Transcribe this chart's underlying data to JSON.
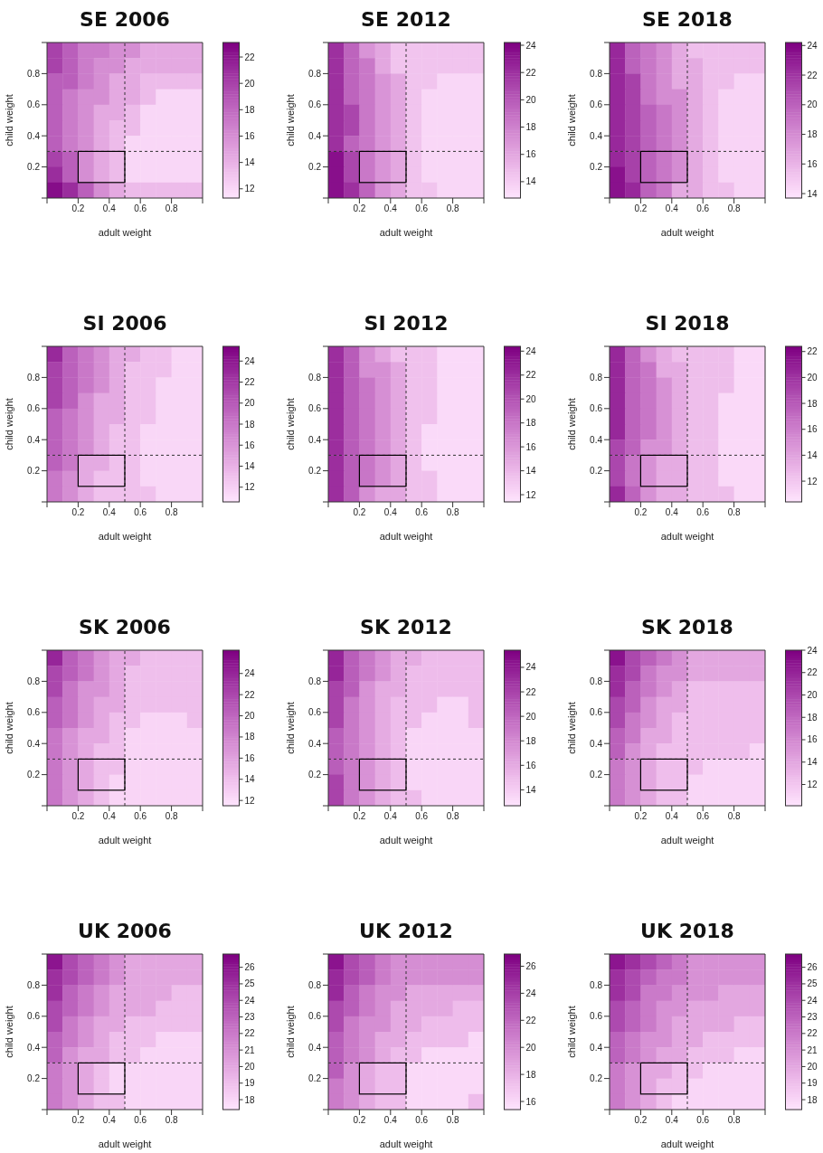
{
  "chart_data": [
    {
      "type": "heatmap",
      "title": "SE 2006",
      "xlabel": "adult weight",
      "ylabel": "child weight",
      "x": [
        0.05,
        0.15,
        0.25,
        0.35,
        0.45,
        0.55,
        0.65,
        0.75,
        0.85,
        0.95
      ],
      "xlim": [
        0,
        1
      ],
      "ylim": [
        0,
        1
      ],
      "xticks": [
        0.2,
        0.4,
        0.6,
        0.8
      ],
      "yticks": [
        0.2,
        0.4,
        0.6,
        0.8
      ],
      "clim": [
        11.3,
        23.1
      ],
      "cticks": [
        12,
        14,
        16,
        18,
        20,
        22
      ],
      "cells": [
        [
          20,
          18.5,
          17,
          17,
          16,
          16,
          14.5,
          14.5,
          14.5,
          14.5
        ],
        [
          20,
          18.5,
          17,
          16,
          16,
          14.5,
          14.5,
          14.5,
          14.5,
          14.5
        ],
        [
          18.5,
          18.5,
          17,
          16,
          14.5,
          14.5,
          13.5,
          13.5,
          13.5,
          13.5
        ],
        [
          18.5,
          17,
          16,
          16,
          14.5,
          14.5,
          13.5,
          12,
          12,
          12
        ],
        [
          18.5,
          17,
          16,
          14.5,
          14.5,
          13.5,
          12,
          12,
          12,
          12
        ],
        [
          18.5,
          17,
          16,
          14.5,
          13.5,
          13.5,
          12,
          12,
          12,
          12
        ],
        [
          18.5,
          17,
          16,
          14.5,
          13.5,
          12,
          12,
          12,
          12,
          12
        ],
        [
          20,
          18.5,
          16,
          14.5,
          13.5,
          12,
          12,
          12,
          12,
          12
        ],
        [
          21,
          18.5,
          16,
          14.5,
          13.5,
          12,
          12,
          12,
          12,
          12
        ],
        [
          22.5,
          21,
          18.5,
          16,
          14.5,
          13.5,
          13.5,
          13.5,
          13.5,
          13.5
        ]
      ],
      "ref_lines": [
        {
          "axis": "x",
          "value": 0.5,
          "color": "#333333",
          "line_style": "dashed"
        },
        {
          "axis": "y",
          "value": 0.3,
          "color": "#333333",
          "line_style": "dashed"
        }
      ],
      "series": [
        {
          "type": "histogram",
          "bins": [
            0.2,
            0.5
          ],
          "values": [
            0.2
          ],
          "base": [
            0.1
          ],
          "color": "#000000"
        }
      ]
    },
    {
      "type": "heatmap",
      "title": "SE 2012",
      "xlabel": "adult weight",
      "ylabel": "child weight",
      "x": [
        0.05,
        0.15,
        0.25,
        0.35,
        0.45,
        0.55,
        0.65,
        0.75,
        0.85,
        0.95
      ],
      "xlim": [
        0,
        1
      ],
      "ylim": [
        0,
        1
      ],
      "xticks": [
        0.2,
        0.4,
        0.6,
        0.8
      ],
      "yticks": [
        0.2,
        0.4,
        0.6,
        0.8
      ],
      "clim": [
        12.8,
        24.2
      ],
      "cticks": [
        14,
        16,
        18,
        20,
        22,
        24
      ],
      "cells": [
        [
          22,
          19.5,
          17,
          16,
          14.5,
          14.5,
          14.5,
          14.5,
          14.5,
          14.5
        ],
        [
          22,
          19.5,
          18.5,
          16,
          14.5,
          14.5,
          14.5,
          14.5,
          14.5,
          14.5
        ],
        [
          22,
          19.5,
          18.5,
          17,
          16,
          14.5,
          14.5,
          13.5,
          13.5,
          13.5
        ],
        [
          22,
          19.5,
          18.5,
          17,
          16,
          14.5,
          13.5,
          13.5,
          13.5,
          13.5
        ],
        [
          22,
          21,
          18.5,
          17,
          16,
          14.5,
          13.5,
          13.5,
          13.5,
          13.5
        ],
        [
          22,
          21,
          18.5,
          17,
          16,
          14.5,
          13.5,
          13.5,
          13.5,
          13.5
        ],
        [
          22,
          19.5,
          18.5,
          17,
          16,
          14.5,
          13.5,
          13.5,
          13.5,
          13.5
        ],
        [
          23.5,
          21,
          18.5,
          17,
          16,
          14.5,
          13.5,
          13.5,
          13.5,
          13.5
        ],
        [
          23.5,
          21,
          18.5,
          17,
          16,
          14.5,
          13.5,
          13.5,
          13.5,
          13.5
        ],
        [
          23.5,
          22,
          19.5,
          17,
          16,
          14.5,
          14.5,
          13.5,
          13.5,
          13.5
        ]
      ],
      "ref_lines": [
        {
          "axis": "x",
          "value": 0.5,
          "color": "#333333",
          "line_style": "dashed"
        },
        {
          "axis": "y",
          "value": 0.3,
          "color": "#333333",
          "line_style": "dashed"
        }
      ],
      "series": [
        {
          "type": "histogram",
          "bins": [
            0.2,
            0.5
          ],
          "values": [
            0.2
          ],
          "base": [
            0.1
          ],
          "color": "#000000"
        }
      ]
    },
    {
      "type": "heatmap",
      "title": "SE 2018",
      "xlabel": "adult weight",
      "ylabel": "child weight",
      "x": [
        0.05,
        0.15,
        0.25,
        0.35,
        0.45,
        0.55,
        0.65,
        0.75,
        0.85,
        0.95
      ],
      "xlim": [
        0,
        1
      ],
      "ylim": [
        0,
        1
      ],
      "xticks": [
        0.2,
        0.4,
        0.6,
        0.8
      ],
      "yticks": [
        0.2,
        0.4,
        0.6,
        0.8
      ],
      "clim": [
        13.7,
        24.2
      ],
      "cticks": [
        14,
        16,
        18,
        20,
        22,
        24
      ],
      "cells": [
        [
          22.5,
          20,
          19,
          18,
          16.5,
          15.5,
          15.5,
          15.5,
          15.5,
          15.5
        ],
        [
          22.5,
          20,
          19,
          18,
          16.5,
          16.5,
          15.5,
          15.5,
          15.5,
          15.5
        ],
        [
          22.5,
          21.5,
          19,
          18,
          16.5,
          16.5,
          15.5,
          15.5,
          14.5,
          14.5
        ],
        [
          22.5,
          21.5,
          19,
          18,
          18,
          16.5,
          15.5,
          14.5,
          14.5,
          14.5
        ],
        [
          22.5,
          21.5,
          20,
          19,
          18,
          16.5,
          15.5,
          14.5,
          14.5,
          14.5
        ],
        [
          22.5,
          21.5,
          20,
          19,
          18,
          16.5,
          15.5,
          14.5,
          14.5,
          14.5
        ],
        [
          22.5,
          21.5,
          20,
          19,
          18,
          16.5,
          15.5,
          14.5,
          14.5,
          14.5
        ],
        [
          22.5,
          21.5,
          20,
          19,
          18,
          16.5,
          15.5,
          14.5,
          14.5,
          14.5
        ],
        [
          23.5,
          21.5,
          20,
          19,
          18,
          16.5,
          15.5,
          14.5,
          14.5,
          14.5
        ],
        [
          23.5,
          22.5,
          20,
          19,
          16.5,
          16.5,
          15.5,
          15.5,
          14.5,
          14.5
        ]
      ],
      "ref_lines": [
        {
          "axis": "x",
          "value": 0.5,
          "color": "#333333",
          "line_style": "dashed"
        },
        {
          "axis": "y",
          "value": 0.3,
          "color": "#333333",
          "line_style": "dashed"
        }
      ],
      "series": [
        {
          "type": "histogram",
          "bins": [
            0.2,
            0.5
          ],
          "values": [
            0.2
          ],
          "base": [
            0.1
          ],
          "color": "#000000"
        }
      ]
    },
    {
      "type": "heatmap",
      "title": "SI 2006",
      "xlabel": "adult weight",
      "ylabel": "child weight",
      "x": [
        0.05,
        0.15,
        0.25,
        0.35,
        0.45,
        0.55,
        0.65,
        0.75,
        0.85,
        0.95
      ],
      "xlim": [
        0,
        1
      ],
      "ylim": [
        0,
        1
      ],
      "xticks": [
        0.2,
        0.4,
        0.6,
        0.8
      ],
      "yticks": [
        0.2,
        0.4,
        0.6,
        0.8
      ],
      "clim": [
        10.6,
        25.4
      ],
      "cticks": [
        12,
        14,
        16,
        18,
        20,
        22,
        24
      ],
      "cells": [
        [
          23,
          19.5,
          18,
          16.5,
          14.5,
          14.5,
          13,
          13,
          11.5,
          11.5
        ],
        [
          21.5,
          19.5,
          18,
          16.5,
          14.5,
          13,
          13,
          13,
          11.5,
          11.5
        ],
        [
          21.5,
          19.5,
          18,
          16.5,
          14.5,
          13,
          13,
          11.5,
          11.5,
          11.5
        ],
        [
          21.5,
          19.5,
          16.5,
          14.5,
          14.5,
          13,
          13,
          11.5,
          11.5,
          11.5
        ],
        [
          19.5,
          18,
          16.5,
          14.5,
          14.5,
          13,
          13,
          11.5,
          11.5,
          11.5
        ],
        [
          19.5,
          18,
          16.5,
          14.5,
          13,
          13,
          11.5,
          11.5,
          11.5,
          11.5
        ],
        [
          19.5,
          18,
          16.5,
          14.5,
          13,
          13,
          11.5,
          11.5,
          11.5,
          11.5
        ],
        [
          19.5,
          18,
          14.5,
          14.5,
          13,
          13,
          11.5,
          11.5,
          11.5,
          11.5
        ],
        [
          18,
          16.5,
          14.5,
          13,
          13,
          13,
          11.5,
          11.5,
          11.5,
          11.5
        ],
        [
          18,
          16.5,
          14.5,
          13,
          13,
          13,
          13,
          11.5,
          11.5,
          11.5
        ]
      ],
      "ref_lines": [
        {
          "axis": "x",
          "value": 0.5,
          "color": "#333333",
          "line_style": "dashed"
        },
        {
          "axis": "y",
          "value": 0.3,
          "color": "#333333",
          "line_style": "dashed"
        }
      ],
      "series": [
        {
          "type": "histogram",
          "bins": [
            0.2,
            0.5
          ],
          "values": [
            0.2
          ],
          "base": [
            0.1
          ],
          "color": "#000000"
        }
      ]
    },
    {
      "type": "heatmap",
      "title": "SI 2012",
      "xlabel": "adult weight",
      "ylabel": "child weight",
      "x": [
        0.05,
        0.15,
        0.25,
        0.35,
        0.45,
        0.55,
        0.65,
        0.75,
        0.85,
        0.95
      ],
      "xlim": [
        0,
        1
      ],
      "ylim": [
        0,
        1
      ],
      "xticks": [
        0.2,
        0.4,
        0.6,
        0.8
      ],
      "yticks": [
        0.2,
        0.4,
        0.6,
        0.8
      ],
      "clim": [
        11.4,
        24.4
      ],
      "cticks": [
        12,
        14,
        16,
        18,
        20,
        22,
        24
      ],
      "cells": [
        [
          22,
          19.5,
          16.5,
          15,
          13.5,
          13.5,
          13.5,
          12,
          12,
          12
        ],
        [
          22,
          19.5,
          16.5,
          16.5,
          15,
          13.5,
          13.5,
          12,
          12,
          12
        ],
        [
          22,
          19.5,
          18,
          16.5,
          15,
          13.5,
          13.5,
          12,
          12,
          12
        ],
        [
          22,
          19.5,
          18,
          16.5,
          15,
          13.5,
          13.5,
          12,
          12,
          12
        ],
        [
          22,
          19.5,
          18,
          16.5,
          15,
          13.5,
          13.5,
          12,
          12,
          12
        ],
        [
          22,
          19.5,
          18,
          16.5,
          15,
          13.5,
          12,
          12,
          12,
          12
        ],
        [
          22,
          19.5,
          18,
          16.5,
          15,
          13.5,
          12,
          12,
          12,
          12
        ],
        [
          22,
          19.5,
          18,
          16.5,
          15,
          13.5,
          12,
          12,
          12,
          12
        ],
        [
          22,
          19.5,
          18,
          16.5,
          15,
          13.5,
          13.5,
          12,
          12,
          12
        ],
        [
          22,
          19.5,
          16.5,
          15,
          15,
          13.5,
          13.5,
          12,
          12,
          12
        ]
      ],
      "ref_lines": [
        {
          "axis": "x",
          "value": 0.5,
          "color": "#333333",
          "line_style": "dashed"
        },
        {
          "axis": "y",
          "value": 0.3,
          "color": "#333333",
          "line_style": "dashed"
        }
      ],
      "series": [
        {
          "type": "histogram",
          "bins": [
            0.2,
            0.5
          ],
          "values": [
            0.2
          ],
          "base": [
            0.1
          ],
          "color": "#000000"
        }
      ]
    },
    {
      "type": "heatmap",
      "title": "SI 2018",
      "xlabel": "adult weight",
      "ylabel": "child weight",
      "x": [
        0.05,
        0.15,
        0.25,
        0.35,
        0.45,
        0.55,
        0.65,
        0.75,
        0.85,
        0.95
      ],
      "xlim": [
        0,
        1
      ],
      "ylim": [
        0,
        1
      ],
      "xticks": [
        0.2,
        0.4,
        0.6,
        0.8
      ],
      "yticks": [
        0.2,
        0.4,
        0.6,
        0.8
      ],
      "clim": [
        10.4,
        22.4
      ],
      "cticks": [
        12,
        14,
        16,
        18,
        20,
        22
      ],
      "cells": [
        [
          20.5,
          17.5,
          15,
          13.5,
          12.5,
          12.5,
          12.5,
          12.5,
          11,
          11
        ],
        [
          20.5,
          17.5,
          16.5,
          13.5,
          13.5,
          12.5,
          12.5,
          12.5,
          11,
          11
        ],
        [
          20.5,
          17.5,
          16.5,
          15,
          13.5,
          12.5,
          12.5,
          12.5,
          11,
          11
        ],
        [
          20.5,
          17.5,
          16.5,
          15,
          13.5,
          12.5,
          12.5,
          11,
          11,
          11
        ],
        [
          20.5,
          17.5,
          16.5,
          15,
          13.5,
          12.5,
          12.5,
          11,
          11,
          11
        ],
        [
          20.5,
          17.5,
          16.5,
          15,
          13.5,
          12.5,
          12.5,
          11,
          11,
          11
        ],
        [
          19,
          17.5,
          15,
          15,
          13.5,
          12.5,
          12.5,
          11,
          11,
          11
        ],
        [
          19,
          16.5,
          15,
          13.5,
          13.5,
          12.5,
          12.5,
          11,
          11,
          11
        ],
        [
          19,
          16.5,
          15,
          13.5,
          13.5,
          12.5,
          12.5,
          11,
          11,
          11
        ],
        [
          20.5,
          17.5,
          15,
          13.5,
          13.5,
          12.5,
          12.5,
          12.5,
          11,
          11
        ]
      ],
      "ref_lines": [
        {
          "axis": "x",
          "value": 0.5,
          "color": "#333333",
          "line_style": "dashed"
        },
        {
          "axis": "y",
          "value": 0.3,
          "color": "#333333",
          "line_style": "dashed"
        }
      ],
      "series": [
        {
          "type": "histogram",
          "bins": [
            0.2,
            0.5
          ],
          "values": [
            0.2
          ],
          "base": [
            0.1
          ],
          "color": "#000000"
        }
      ]
    },
    {
      "type": "heatmap",
      "title": "SK 2006",
      "xlabel": "adult weight",
      "ylabel": "child weight",
      "x": [
        0.05,
        0.15,
        0.25,
        0.35,
        0.45,
        0.55,
        0.65,
        0.75,
        0.85,
        0.95
      ],
      "xlim": [
        0,
        1
      ],
      "ylim": [
        0,
        1
      ],
      "xticks": [
        0.2,
        0.4,
        0.6,
        0.8
      ],
      "yticks": [
        0.2,
        0.4,
        0.6,
        0.8
      ],
      "clim": [
        11.5,
        26.2
      ],
      "cticks": [
        12,
        14,
        16,
        18,
        20,
        22,
        24
      ],
      "cells": [
        [
          24,
          20.5,
          19,
          17,
          15.5,
          15.5,
          14,
          14,
          14,
          14
        ],
        [
          22,
          20.5,
          19,
          17,
          15.5,
          14,
          14,
          14,
          14,
          14
        ],
        [
          22,
          19,
          17,
          17,
          15.5,
          14,
          14,
          14,
          14,
          14
        ],
        [
          20.5,
          19,
          17,
          15.5,
          15.5,
          14,
          14,
          14,
          14,
          14
        ],
        [
          20.5,
          19,
          17,
          15.5,
          14,
          14,
          12.5,
          12.5,
          12.5,
          14
        ],
        [
          19,
          17,
          15.5,
          15.5,
          14,
          12.5,
          12.5,
          12.5,
          12.5,
          12.5
        ],
        [
          19,
          17,
          15.5,
          14,
          14,
          12.5,
          12.5,
          12.5,
          12.5,
          12.5
        ],
        [
          19,
          17,
          15.5,
          14,
          14,
          12.5,
          12.5,
          12.5,
          12.5,
          12.5
        ],
        [
          19,
          17,
          15.5,
          14,
          12.5,
          12.5,
          12.5,
          12.5,
          12.5,
          12.5
        ],
        [
          19,
          17,
          15.5,
          14,
          12.5,
          12.5,
          12.5,
          12.5,
          12.5,
          12.5
        ]
      ],
      "ref_lines": [
        {
          "axis": "x",
          "value": 0.5,
          "color": "#333333",
          "line_style": "dashed"
        },
        {
          "axis": "y",
          "value": 0.3,
          "color": "#333333",
          "line_style": "dashed"
        }
      ],
      "series": [
        {
          "type": "histogram",
          "bins": [
            0.2,
            0.5
          ],
          "values": [
            0.2
          ],
          "base": [
            0.1
          ],
          "color": "#000000"
        }
      ]
    },
    {
      "type": "heatmap",
      "title": "SK 2012",
      "xlabel": "adult weight",
      "ylabel": "child weight",
      "x": [
        0.05,
        0.15,
        0.25,
        0.35,
        0.45,
        0.55,
        0.65,
        0.75,
        0.85,
        0.95
      ],
      "xlim": [
        0,
        1
      ],
      "ylim": [
        0,
        1
      ],
      "xticks": [
        0.2,
        0.4,
        0.6,
        0.8
      ],
      "yticks": [
        0.2,
        0.4,
        0.6,
        0.8
      ],
      "clim": [
        12.7,
        25.4
      ],
      "cticks": [
        14,
        16,
        18,
        20,
        22,
        24
      ],
      "cells": [
        [
          23.5,
          20.5,
          19,
          17.5,
          16,
          16,
          15,
          15,
          15,
          15
        ],
        [
          23.5,
          20.5,
          19,
          17.5,
          16,
          15,
          15,
          15,
          15,
          15
        ],
        [
          22,
          20.5,
          17.5,
          16,
          16,
          15,
          15,
          15,
          15,
          15
        ],
        [
          22,
          19,
          17.5,
          16,
          15,
          15,
          15,
          13.5,
          13.5,
          15
        ],
        [
          22,
          19,
          17.5,
          16,
          15,
          15,
          13.5,
          13.5,
          13.5,
          15
        ],
        [
          20.5,
          19,
          17.5,
          16,
          15,
          13.5,
          13.5,
          13.5,
          13.5,
          13.5
        ],
        [
          20.5,
          19,
          17.5,
          16,
          15,
          13.5,
          13.5,
          13.5,
          13.5,
          13.5
        ],
        [
          20.5,
          19,
          17.5,
          16,
          15,
          13.5,
          13.5,
          13.5,
          13.5,
          13.5
        ],
        [
          22,
          19,
          17.5,
          16,
          15,
          13.5,
          13.5,
          13.5,
          13.5,
          13.5
        ],
        [
          22,
          19,
          17.5,
          16,
          15,
          15,
          13.5,
          13.5,
          13.5,
          13.5
        ]
      ],
      "ref_lines": [
        {
          "axis": "x",
          "value": 0.5,
          "color": "#333333",
          "line_style": "dashed"
        },
        {
          "axis": "y",
          "value": 0.3,
          "color": "#333333",
          "line_style": "dashed"
        }
      ],
      "series": [
        {
          "type": "histogram",
          "bins": [
            0.2,
            0.5
          ],
          "values": [
            0.2
          ],
          "base": [
            0.1
          ],
          "color": "#000000"
        }
      ]
    },
    {
      "type": "heatmap",
      "title": "SK 2018",
      "xlabel": "adult weight",
      "ylabel": "child weight",
      "x": [
        0.05,
        0.15,
        0.25,
        0.35,
        0.45,
        0.55,
        0.65,
        0.75,
        0.85,
        0.95
      ],
      "xlim": [
        0,
        1
      ],
      "ylim": [
        0,
        1
      ],
      "xticks": [
        0.2,
        0.4,
        0.6,
        0.8
      ],
      "yticks": [
        0.2,
        0.4,
        0.6,
        0.8
      ],
      "clim": [
        10.1,
        24
      ],
      "cticks": [
        12,
        14,
        16,
        18,
        20,
        22,
        24
      ],
      "cells": [
        [
          23,
          20,
          18.5,
          17,
          15.5,
          14,
          14,
          14,
          14,
          14
        ],
        [
          21.5,
          20,
          17,
          15.5,
          15.5,
          14,
          14,
          14,
          14,
          14
        ],
        [
          21.5,
          18.5,
          17,
          15.5,
          14,
          12.5,
          12.5,
          12.5,
          12.5,
          12.5
        ],
        [
          20,
          18.5,
          15.5,
          14,
          14,
          12.5,
          12.5,
          12.5,
          12.5,
          12.5
        ],
        [
          20,
          17,
          15.5,
          14,
          12.5,
          12.5,
          12.5,
          12.5,
          12.5,
          12.5
        ],
        [
          18.5,
          17,
          14,
          14,
          12.5,
          12.5,
          12.5,
          12.5,
          12.5,
          12.5
        ],
        [
          18.5,
          15.5,
          14,
          12.5,
          12.5,
          12.5,
          12.5,
          12.5,
          12.5,
          11
        ],
        [
          17,
          15.5,
          14,
          12.5,
          12.5,
          12.5,
          11,
          11,
          11,
          11
        ],
        [
          17,
          15.5,
          14,
          12.5,
          12.5,
          11,
          11,
          11,
          11,
          11
        ],
        [
          17,
          15.5,
          14,
          12.5,
          12.5,
          11,
          11,
          11,
          11,
          11
        ]
      ],
      "ref_lines": [
        {
          "axis": "x",
          "value": 0.5,
          "color": "#333333",
          "line_style": "dashed"
        },
        {
          "axis": "y",
          "value": 0.3,
          "color": "#333333",
          "line_style": "dashed"
        }
      ],
      "series": [
        {
          "type": "histogram",
          "bins": [
            0.2,
            0.5
          ],
          "values": [
            0.2
          ],
          "base": [
            0.1
          ],
          "color": "#000000"
        }
      ]
    },
    {
      "type": "heatmap",
      "title": "UK 2006",
      "xlabel": "adult weight",
      "ylabel": "child weight",
      "x": [
        0.05,
        0.15,
        0.25,
        0.35,
        0.45,
        0.55,
        0.65,
        0.75,
        0.85,
        0.95
      ],
      "xlim": [
        0,
        1
      ],
      "ylim": [
        0,
        1
      ],
      "xticks": [
        0.2,
        0.4,
        0.6,
        0.8
      ],
      "yticks": [
        0.2,
        0.4,
        0.6,
        0.8
      ],
      "clim": [
        17.4,
        26.8
      ],
      "cticks": [
        18,
        19,
        20,
        21,
        22,
        23,
        24,
        25,
        26
      ],
      "cells": [
        [
          26,
          24,
          23,
          22,
          21,
          20,
          20,
          20,
          20,
          20
        ],
        [
          25,
          24,
          23,
          22,
          21,
          20,
          20,
          20,
          20,
          20
        ],
        [
          25,
          23,
          22,
          21,
          20,
          20,
          20,
          20,
          19,
          19
        ],
        [
          24,
          23,
          22,
          21,
          20,
          20,
          20,
          19,
          19,
          19
        ],
        [
          24,
          22,
          21,
          20,
          20,
          19,
          19,
          19,
          19,
          19
        ],
        [
          23,
          22,
          21,
          20,
          19,
          19,
          19,
          18,
          18,
          18
        ],
        [
          23,
          21,
          20,
          20,
          19,
          19,
          18,
          18,
          18,
          18
        ],
        [
          22,
          21,
          20,
          19,
          18,
          18,
          18,
          18,
          18,
          18
        ],
        [
          22,
          21,
          20,
          19,
          18,
          18,
          18,
          18,
          18,
          18
        ],
        [
          22,
          21,
          20,
          19,
          19,
          18,
          18,
          18,
          18,
          18
        ]
      ],
      "ref_lines": [
        {
          "axis": "x",
          "value": 0.5,
          "color": "#333333",
          "line_style": "dashed"
        },
        {
          "axis": "y",
          "value": 0.3,
          "color": "#333333",
          "line_style": "dashed"
        }
      ],
      "series": [
        {
          "type": "histogram",
          "bins": [
            0.2,
            0.5
          ],
          "values": [
            0.2
          ],
          "base": [
            0.1
          ],
          "color": "#000000"
        }
      ]
    },
    {
      "type": "heatmap",
      "title": "UK 2012",
      "xlabel": "adult weight",
      "ylabel": "child weight",
      "x": [
        0.05,
        0.15,
        0.25,
        0.35,
        0.45,
        0.55,
        0.65,
        0.75,
        0.85,
        0.95
      ],
      "xlim": [
        0,
        1
      ],
      "ylim": [
        0,
        1
      ],
      "xticks": [
        0.2,
        0.4,
        0.6,
        0.8
      ],
      "yticks": [
        0.2,
        0.4,
        0.6,
        0.8
      ],
      "clim": [
        15.4,
        26.9
      ],
      "cticks": [
        16,
        18,
        20,
        22,
        24,
        26
      ],
      "cells": [
        [
          26,
          23.5,
          22.5,
          21,
          20,
          20,
          20,
          20,
          20,
          20
        ],
        [
          25,
          23.5,
          22.5,
          21,
          20,
          20,
          20,
          20,
          20,
          20
        ],
        [
          25,
          22.5,
          21,
          20,
          20,
          18.5,
          18.5,
          18.5,
          18.5,
          18.5
        ],
        [
          23.5,
          22.5,
          21,
          20,
          18.5,
          18.5,
          18.5,
          18.5,
          17.5,
          17.5
        ],
        [
          23.5,
          21,
          20,
          20,
          18.5,
          18.5,
          17.5,
          17.5,
          17.5,
          17.5
        ],
        [
          22.5,
          21,
          20,
          18.5,
          18.5,
          17.5,
          17.5,
          17.5,
          17.5,
          16
        ],
        [
          22.5,
          21,
          20,
          18.5,
          17.5,
          17.5,
          16,
          16,
          16,
          16
        ],
        [
          22.5,
          20,
          18.5,
          17.5,
          17.5,
          16,
          16,
          16,
          16,
          16
        ],
        [
          21,
          20,
          18.5,
          17.5,
          17.5,
          16,
          16,
          16,
          16,
          16
        ],
        [
          21,
          20,
          18.5,
          17.5,
          17.5,
          16,
          16,
          16,
          16,
          17.5
        ]
      ],
      "ref_lines": [
        {
          "axis": "x",
          "value": 0.5,
          "color": "#333333",
          "line_style": "dashed"
        },
        {
          "axis": "y",
          "value": 0.3,
          "color": "#333333",
          "line_style": "dashed"
        }
      ],
      "series": [
        {
          "type": "histogram",
          "bins": [
            0.2,
            0.5
          ],
          "values": [
            0.2
          ],
          "base": [
            0.1
          ],
          "color": "#000000"
        }
      ]
    },
    {
      "type": "heatmap",
      "title": "UK 2018",
      "xlabel": "adult weight",
      "ylabel": "child weight",
      "x": [
        0.05,
        0.15,
        0.25,
        0.35,
        0.45,
        0.55,
        0.65,
        0.75,
        0.85,
        0.95
      ],
      "xlim": [
        0,
        1
      ],
      "ylim": [
        0,
        1
      ],
      "xticks": [
        0.2,
        0.4,
        0.6,
        0.8
      ],
      "yticks": [
        0.2,
        0.4,
        0.6,
        0.8
      ],
      "clim": [
        17.4,
        26.8
      ],
      "cticks": [
        18,
        19,
        20,
        21,
        22,
        23,
        24,
        25,
        26
      ],
      "cells": [
        [
          26,
          25,
          24,
          23,
          22,
          21,
          21,
          21,
          21,
          21
        ],
        [
          25,
          24,
          23,
          22,
          22,
          21,
          21,
          21,
          21,
          21
        ],
        [
          25,
          24,
          22,
          22,
          21,
          21,
          21,
          20,
          20,
          20
        ],
        [
          24,
          23,
          22,
          21,
          21,
          20,
          20,
          20,
          20,
          20
        ],
        [
          24,
          23,
          22,
          21,
          20,
          20,
          20,
          20,
          19,
          19
        ],
        [
          23,
          22,
          21,
          21,
          20,
          20,
          19,
          19,
          19,
          19
        ],
        [
          23,
          22,
          21,
          20,
          20,
          19,
          19,
          19,
          18,
          18
        ],
        [
          22,
          21,
          20,
          20,
          19,
          19,
          18,
          18,
          18,
          18
        ],
        [
          22,
          21,
          20,
          19,
          19,
          18,
          18,
          18,
          18,
          18
        ],
        [
          22,
          21,
          20,
          19,
          18,
          18,
          18,
          18,
          18,
          18
        ]
      ],
      "ref_lines": [
        {
          "axis": "x",
          "value": 0.5,
          "color": "#333333",
          "line_style": "dashed"
        },
        {
          "axis": "y",
          "value": 0.3,
          "color": "#333333",
          "line_style": "dashed"
        }
      ],
      "series": [
        {
          "type": "histogram",
          "bins": [
            0.2,
            0.5
          ],
          "values": [
            0.2
          ],
          "base": [
            0.1
          ],
          "color": "#000000"
        }
      ]
    }
  ]
}
